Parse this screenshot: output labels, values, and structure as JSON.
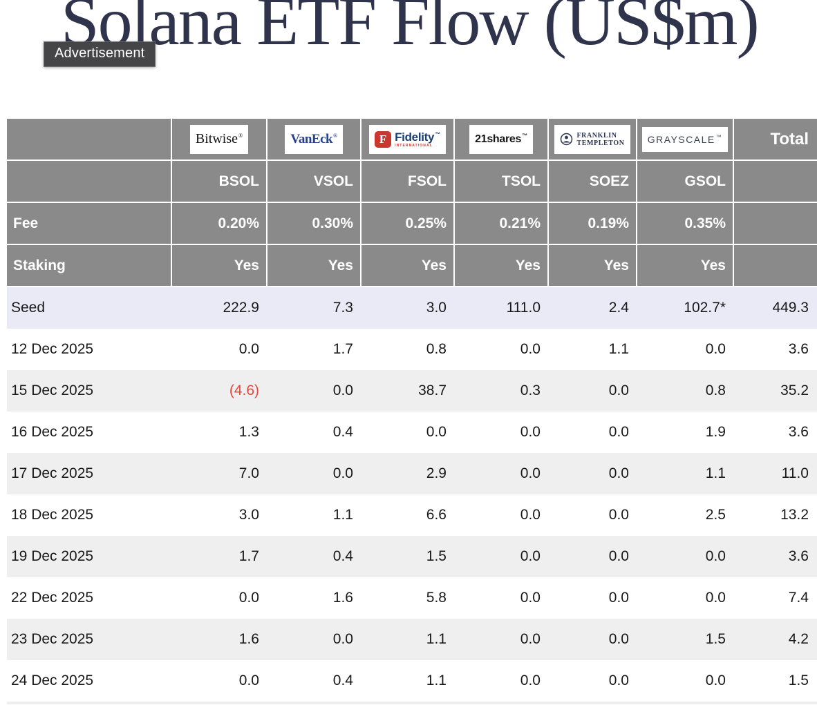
{
  "page": {
    "title": "Solana ETF Flow (US$m)",
    "advertisement_label": "Advertisement"
  },
  "chart_data": {
    "type": "table",
    "title": "Solana ETF Flow (US$m)",
    "providers": [
      {
        "id": "bitwise",
        "name": "Bitwise",
        "logo_text": "Bitwise",
        "logo_mark": "®",
        "ticker": "BSOL",
        "fee": "0.20%",
        "staking": "Yes"
      },
      {
        "id": "vaneck",
        "name": "VanEck",
        "logo_text": "VanEck",
        "logo_mark": "®",
        "ticker": "VSOL",
        "fee": "0.30%",
        "staking": "Yes"
      },
      {
        "id": "fidelity",
        "name": "Fidelity",
        "logo_text": "Fidelity",
        "logo_monogram": "F",
        "logo_sub": "INTERNATIONAL",
        "logo_mark": "™",
        "ticker": "FSOL",
        "fee": "0.25%",
        "staking": "Yes"
      },
      {
        "id": "21shares",
        "name": "21shares",
        "logo_text": "21shares",
        "logo_mark": "™",
        "ticker": "TSOL",
        "fee": "0.21%",
        "staking": "Yes"
      },
      {
        "id": "franklin-templeton",
        "name": "Franklin Templeton",
        "logo_line1": "FRANKLIN",
        "logo_line2": "TEMPLETON",
        "ticker": "SOEZ",
        "fee": "0.19%",
        "staking": "Yes"
      },
      {
        "id": "grayscale",
        "name": "Grayscale",
        "logo_text": "GRAYSCALE",
        "logo_mark": "™",
        "ticker": "GSOL",
        "fee": "0.35%",
        "staking": "Yes"
      }
    ],
    "row_headers": {
      "fee": "Fee",
      "staking": "Staking"
    },
    "total_label": "Total",
    "rows": [
      {
        "label": "Seed",
        "values": [
          "222.9",
          "7.3",
          "3.0",
          "111.0",
          "2.4",
          "102.7*",
          "449.3"
        ]
      },
      {
        "label": "12 Dec 2025",
        "values": [
          "0.0",
          "1.7",
          "0.8",
          "0.0",
          "1.1",
          "0.0",
          "3.6"
        ]
      },
      {
        "label": "15 Dec 2025",
        "values": [
          "(4.6)",
          "0.0",
          "38.7",
          "0.3",
          "0.0",
          "0.8",
          "35.2"
        ]
      },
      {
        "label": "16 Dec 2025",
        "values": [
          "1.3",
          "0.4",
          "0.0",
          "0.0",
          "0.0",
          "1.9",
          "3.6"
        ]
      },
      {
        "label": "17 Dec 2025",
        "values": [
          "7.0",
          "0.0",
          "2.9",
          "0.0",
          "0.0",
          "1.1",
          "11.0"
        ]
      },
      {
        "label": "18 Dec 2025",
        "values": [
          "3.0",
          "1.1",
          "6.6",
          "0.0",
          "0.0",
          "2.5",
          "13.2"
        ]
      },
      {
        "label": "19 Dec 2025",
        "values": [
          "1.7",
          "0.4",
          "1.5",
          "0.0",
          "0.0",
          "0.0",
          "3.6"
        ]
      },
      {
        "label": "22 Dec 2025",
        "values": [
          "0.0",
          "1.6",
          "5.8",
          "0.0",
          "0.0",
          "0.0",
          "7.4"
        ]
      },
      {
        "label": "23 Dec 2025",
        "values": [
          "1.6",
          "0.0",
          "1.1",
          "0.0",
          "0.0",
          "1.5",
          "4.2"
        ]
      },
      {
        "label": "24 Dec 2025",
        "values": [
          "0.0",
          "0.4",
          "1.1",
          "0.0",
          "0.0",
          "0.0",
          "1.5"
        ]
      }
    ],
    "layout_hints": {
      "seed_row_highlighted": true,
      "alternating_rows": true,
      "negative_values_in_red_parentheses": true
    }
  },
  "colors": {
    "title_text": "#2f344c",
    "ad_badge_bg": "#454547",
    "header_bg": "#8a8a8a",
    "header_text": "#ffffff",
    "seed_row_bg": "#e9eaf6",
    "alt_row_bg": "#efefef",
    "body_text": "#191919",
    "negative_text": "#e6483c",
    "fidelity_red": "#c9372e",
    "vaneck_blue": "#27418b",
    "fidelity_blue": "#1b3e6f"
  }
}
